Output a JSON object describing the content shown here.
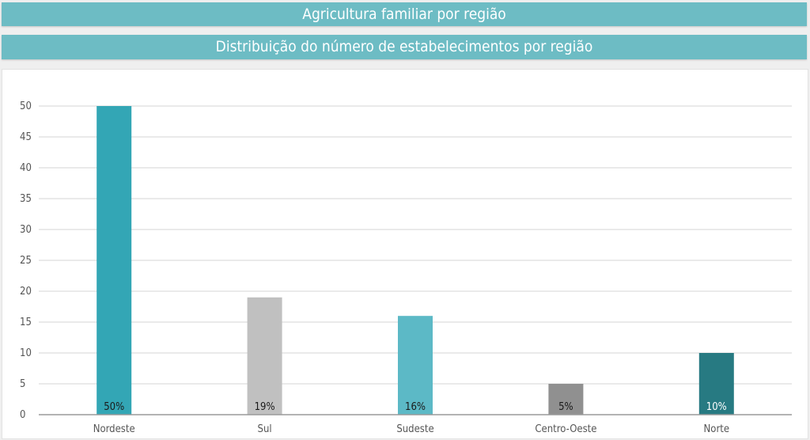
{
  "header": {
    "title": "Agricultura familiar por região"
  },
  "chart_data": {
    "type": "bar",
    "title": "Distribuição do número de estabelecimentos por região",
    "categories": [
      "Nordeste",
      "Sul",
      "Sudeste",
      "Centro-Oeste",
      "Norte"
    ],
    "values": [
      50,
      19,
      16,
      5,
      10
    ],
    "data_labels": [
      "50%",
      "19%",
      "16%",
      "5%",
      "10%"
    ],
    "colors": [
      "#33a6b5",
      "#c0c0c0",
      "#5cb9c6",
      "#909090",
      "#277a82"
    ],
    "label_colors": [
      "#1a1a1a",
      "#1a1a1a",
      "#1a1a1a",
      "#1a1a1a",
      "#ffffff"
    ],
    "ylim": [
      0,
      50
    ],
    "yticks": [
      0,
      5,
      10,
      15,
      20,
      25,
      30,
      35,
      40,
      45,
      50
    ],
    "grid": true,
    "xlabel": "",
    "ylabel": ""
  }
}
